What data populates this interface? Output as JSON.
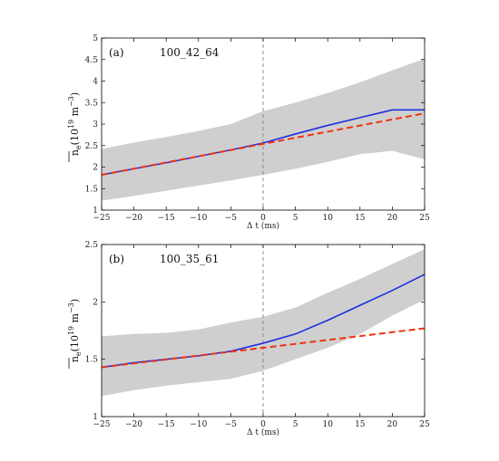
{
  "chart_data": [
    {
      "type": "line",
      "panel_label": "(a)",
      "shot_label": "100_42_64",
      "xlabel": "Δ t (ms)",
      "ylabel_main": "n",
      "ylabel_sub": "e",
      "ylabel_rest": "(10",
      "ylabel_exp1": "19",
      "ylabel_unit": " m",
      "ylabel_exp2": "−3",
      "ylabel_close": ")",
      "xlim": [
        -25,
        25
      ],
      "ylim": [
        1,
        5
      ],
      "xticks": [
        -25,
        -20,
        -15,
        -10,
        -5,
        0,
        5,
        10,
        15,
        20,
        25
      ],
      "yticks": [
        1,
        1.5,
        2,
        2.5,
        3,
        3.5,
        4,
        4.5,
        5
      ],
      "ytick_labels": [
        "1",
        "1.5",
        "2",
        "2.5",
        "3",
        "3.5",
        "4",
        "4.5",
        "5"
      ],
      "vline_x": 0,
      "band": {
        "x": [
          -25,
          -20,
          -15,
          -10,
          -5,
          0,
          5,
          10,
          15,
          20,
          25
        ],
        "lower": [
          1.22,
          1.33,
          1.45,
          1.57,
          1.69,
          1.82,
          1.96,
          2.12,
          2.3,
          2.38,
          2.18
        ],
        "upper": [
          2.42,
          2.57,
          2.7,
          2.84,
          3.0,
          3.3,
          3.5,
          3.72,
          3.97,
          4.25,
          4.52
        ]
      },
      "series": [
        {
          "color": "#1f2fe0",
          "style": "solid",
          "x": [
            -25,
            -20,
            -15,
            -10,
            -5,
            0,
            5,
            10,
            15,
            20,
            25
          ],
          "y": [
            1.82,
            1.96,
            2.1,
            2.25,
            2.4,
            2.56,
            2.77,
            2.97,
            3.15,
            3.33,
            3.33
          ]
        },
        {
          "color": "#ee3311",
          "style": "dashed",
          "x": [
            -25,
            0,
            25
          ],
          "y": [
            1.82,
            2.54,
            3.25
          ]
        }
      ]
    },
    {
      "type": "line",
      "panel_label": "(b)",
      "shot_label": "100_35_61",
      "xlabel": "Δ t (ms)",
      "ylabel_main": "n",
      "ylabel_sub": "e",
      "ylabel_rest": "(10",
      "ylabel_exp1": "19",
      "ylabel_unit": " m",
      "ylabel_exp2": "−3",
      "ylabel_close": ")",
      "xlim": [
        -25,
        25
      ],
      "ylim": [
        1,
        2.5
      ],
      "xticks": [
        -25,
        -20,
        -15,
        -10,
        -5,
        0,
        5,
        10,
        15,
        20,
        25
      ],
      "yticks": [
        1,
        1.5,
        2,
        2.5
      ],
      "ytick_labels": [
        "1",
        "1.5",
        "2",
        "2.5"
      ],
      "vline_x": 0,
      "band": {
        "x": [
          -25,
          -20,
          -15,
          -10,
          -5,
          0,
          5,
          10,
          15,
          20,
          25
        ],
        "lower": [
          1.18,
          1.23,
          1.27,
          1.3,
          1.33,
          1.4,
          1.5,
          1.6,
          1.72,
          1.88,
          2.02
        ],
        "upper": [
          1.7,
          1.72,
          1.73,
          1.76,
          1.82,
          1.87,
          1.95,
          2.08,
          2.2,
          2.33,
          2.46
        ]
      },
      "series": [
        {
          "color": "#1f2fe0",
          "style": "solid",
          "x": [
            -25,
            -20,
            -15,
            -10,
            -5,
            0,
            5,
            10,
            15,
            20,
            25
          ],
          "y": [
            1.43,
            1.47,
            1.5,
            1.53,
            1.57,
            1.64,
            1.72,
            1.84,
            1.97,
            2.1,
            2.24
          ]
        },
        {
          "color": "#ee3311",
          "style": "dashed",
          "x": [
            -25,
            0,
            25
          ],
          "y": [
            1.43,
            1.6,
            1.77
          ]
        }
      ]
    }
  ]
}
